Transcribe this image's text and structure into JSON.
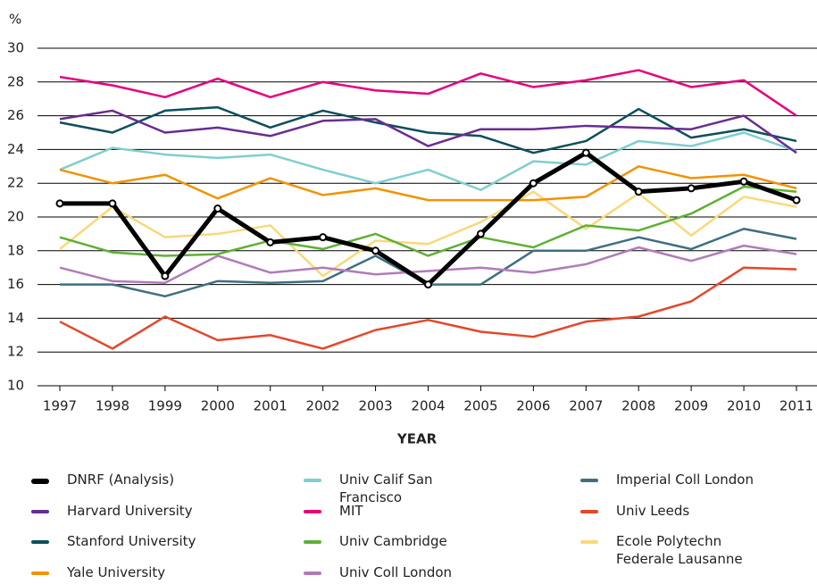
{
  "chart_data": {
    "type": "line",
    "y_label": "%",
    "x_label": "YEAR",
    "categories": [
      "1997",
      "1998",
      "1999",
      "2000",
      "2001",
      "2002",
      "2003",
      "2004",
      "2005",
      "2006",
      "2007",
      "2008",
      "2009",
      "2010",
      "2011"
    ],
    "ylim": [
      10,
      30
    ],
    "yticks": [
      10,
      12,
      14,
      16,
      18,
      20,
      22,
      24,
      26,
      28,
      30
    ],
    "grid": true,
    "series": [
      {
        "name": "DNRF (Analysis)",
        "color": "#000000",
        "markers": true,
        "values": [
          20.8,
          20.8,
          16.5,
          20.5,
          18.5,
          18.8,
          18.0,
          16.0,
          19.0,
          22.0,
          23.8,
          21.5,
          21.7,
          22.1,
          21.0
        ]
      },
      {
        "name": "Harvard University",
        "color": "#6a2c91",
        "values": [
          25.8,
          26.3,
          25.0,
          25.3,
          24.8,
          25.7,
          25.8,
          24.2,
          25.2,
          25.2,
          25.4,
          25.3,
          25.2,
          26.0,
          23.8
        ]
      },
      {
        "name": "Stanford University",
        "color": "#0b4f5c",
        "values": [
          25.6,
          25.0,
          26.3,
          26.5,
          25.3,
          26.3,
          25.6,
          25.0,
          24.8,
          23.8,
          24.5,
          26.4,
          24.7,
          25.2,
          24.5
        ]
      },
      {
        "name": "Yale University",
        "color": "#f39200",
        "values": [
          22.8,
          22.0,
          22.5,
          21.1,
          22.3,
          21.3,
          21.7,
          21.0,
          21.0,
          21.0,
          21.2,
          23.0,
          22.3,
          22.5,
          21.7
        ]
      },
      {
        "name": "Univ Calif San Francisco",
        "color": "#7fcfcc",
        "values": [
          22.8,
          24.1,
          23.7,
          23.5,
          23.7,
          22.8,
          22.0,
          22.8,
          21.6,
          23.3,
          23.1,
          24.5,
          24.2,
          25.0,
          23.9
        ]
      },
      {
        "name": "MIT",
        "color": "#e6007e",
        "values": [
          28.3,
          27.8,
          27.1,
          28.2,
          27.1,
          28.0,
          27.5,
          27.3,
          28.5,
          27.7,
          28.1,
          28.7,
          27.7,
          28.1,
          26.0
        ]
      },
      {
        "name": "Univ Cambridge",
        "color": "#5fb033",
        "values": [
          18.8,
          17.9,
          17.7,
          17.8,
          18.6,
          18.1,
          19.0,
          17.7,
          18.8,
          18.2,
          19.5,
          19.2,
          20.2,
          21.8,
          21.5
        ]
      },
      {
        "name": "Univ Coll London",
        "color": "#b07cb8",
        "values": [
          17.0,
          16.2,
          16.1,
          17.7,
          16.7,
          17.0,
          16.6,
          16.8,
          17.0,
          16.7,
          17.2,
          18.2,
          17.4,
          18.3,
          17.8
        ]
      },
      {
        "name": "Imperial Coll London",
        "color": "#3f6f80",
        "values": [
          16.0,
          16.0,
          15.3,
          16.2,
          16.1,
          16.2,
          17.7,
          16.0,
          16.0,
          18.0,
          18.0,
          18.8,
          18.1,
          19.3,
          18.7
        ]
      },
      {
        "name": "Univ Leeds",
        "color": "#e5472a",
        "values": [
          13.8,
          12.2,
          14.1,
          12.7,
          13.0,
          12.2,
          13.3,
          13.9,
          13.2,
          12.9,
          13.8,
          14.1,
          15.0,
          17.0,
          16.9
        ]
      },
      {
        "name": "Ecole Polytechn Federale Lausanne",
        "color": "#f8d97a",
        "values": [
          18.1,
          20.6,
          18.8,
          19.0,
          19.5,
          16.5,
          18.6,
          18.4,
          19.7,
          21.5,
          19.3,
          21.4,
          18.9,
          21.2,
          20.6
        ]
      }
    ]
  }
}
